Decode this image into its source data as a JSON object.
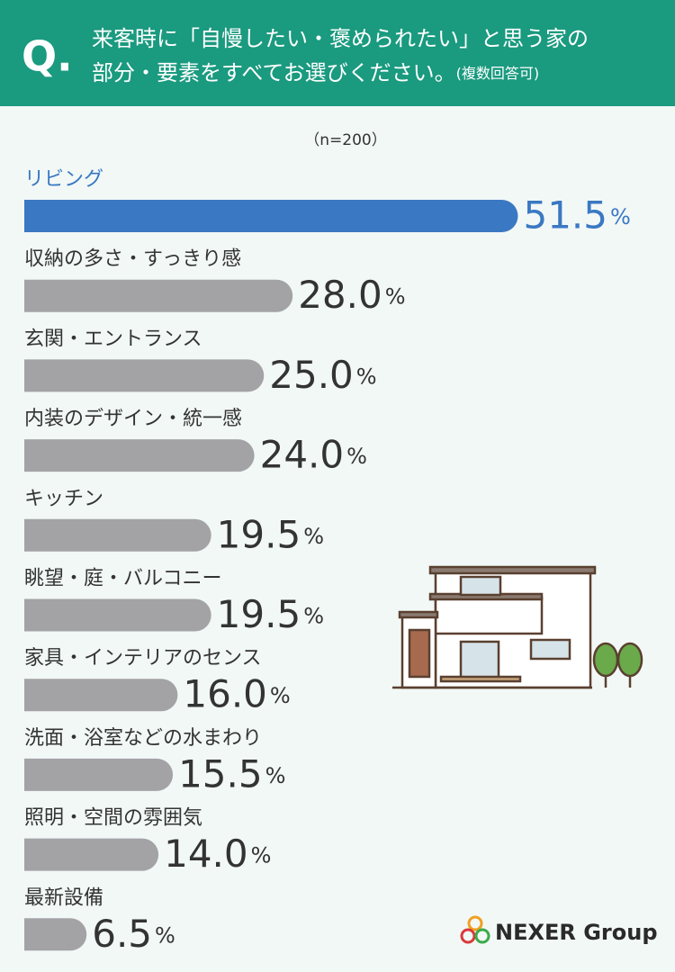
{
  "chart_data": {
    "type": "bar",
    "orientation": "horizontal",
    "question_mark": "Q.",
    "title_line1": "来客時に「自慢したい・褒められたい」と思う家の",
    "title_line2": "部分・要素をすべてお選びください。",
    "title_note": "(複数回答可)",
    "subtitle": "（n=200）",
    "categories": [
      "リビング",
      "収納の多さ・すっきり感",
      "玄関・エントランス",
      "内装のデザイン・統一感",
      "キッチン",
      "眺望・庭・バルコニー",
      "家具・インテリアのセンス",
      "洗面・浴室などの水まわり",
      "照明・空間の雰囲気",
      "最新設備"
    ],
    "values": [
      51.5,
      28,
      25,
      24,
      19.5,
      19.5,
      16,
      15.5,
      14,
      6.5
    ],
    "value_labels": [
      "51.5",
      "28.0",
      "25.0",
      "24.0",
      "19.5",
      "19.5",
      "16.0",
      "15.5",
      "14.0",
      "6.5"
    ],
    "unit": "%",
    "colors": [
      "#3a78c3",
      "#a3a3a6",
      "#a3a3a6",
      "#a3a3a6",
      "#a3a3a6",
      "#a3a3a6",
      "#a3a3a6",
      "#a3a3a6",
      "#a3a3a6",
      "#a3a3a6"
    ],
    "label_colors": [
      "#3a78c3",
      "#333333",
      "#333333",
      "#333333",
      "#333333",
      "#333333",
      "#333333",
      "#333333",
      "#333333",
      "#333333"
    ],
    "logo": "NEXER Group"
  }
}
